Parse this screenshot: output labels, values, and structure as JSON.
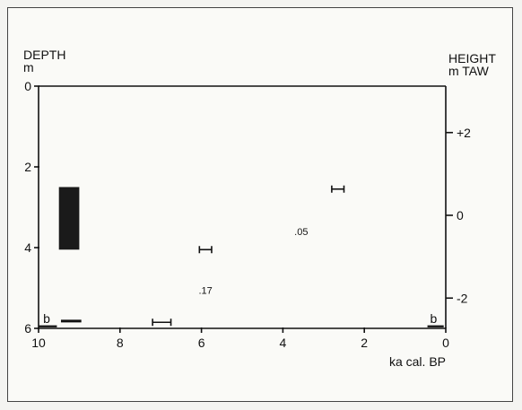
{
  "chart_data": {
    "type": "scatter",
    "left_axis": {
      "label_line1": "DEPTH",
      "label_line2": "m",
      "range": [
        0,
        6
      ],
      "ticks": [
        "0",
        "2",
        "4",
        "6"
      ],
      "tick_values": [
        0,
        2,
        4,
        6
      ]
    },
    "right_axis": {
      "label_line1": "HEIGHT",
      "label_line2": "m TAW",
      "ticks": [
        "+2",
        "0",
        "-2"
      ],
      "tick_depths": [
        1.15,
        3.2,
        5.25
      ]
    },
    "x_axis": {
      "label": "ka cal. BP",
      "range": [
        10,
        0
      ],
      "ticks": [
        "10",
        "8",
        "6",
        "4",
        "2",
        "0"
      ],
      "tick_values": [
        10,
        8,
        6,
        4,
        2,
        0
      ]
    },
    "block": {
      "age_from": 9.5,
      "age_to": 9.0,
      "depth_from": 2.5,
      "depth_to": 4.05
    },
    "ranges": [
      {
        "age_from": 2.8,
        "age_to": 2.5,
        "depth": 2.55
      },
      {
        "age_from": 6.05,
        "age_to": 5.75,
        "depth": 4.05
      },
      {
        "age_from": 7.2,
        "age_to": 6.75,
        "depth": 5.85
      }
    ],
    "bar": {
      "age_from": 9.45,
      "age_to": 8.95,
      "depth": 5.82
    },
    "baseline_marks": [
      {
        "label": "b",
        "age_from": 10.0,
        "age_to": 9.55,
        "depth": 5.95,
        "label_age": 9.8
      },
      {
        "label": "b",
        "age_from": 0.45,
        "age_to": 0.05,
        "depth": 5.95,
        "label_age": 0.3
      }
    ],
    "annotations": [
      {
        "text": ".05",
        "age": 3.55,
        "depth": 3.6
      },
      {
        "text": ".17",
        "age": 5.9,
        "depth": 5.05
      }
    ],
    "grid": false
  }
}
